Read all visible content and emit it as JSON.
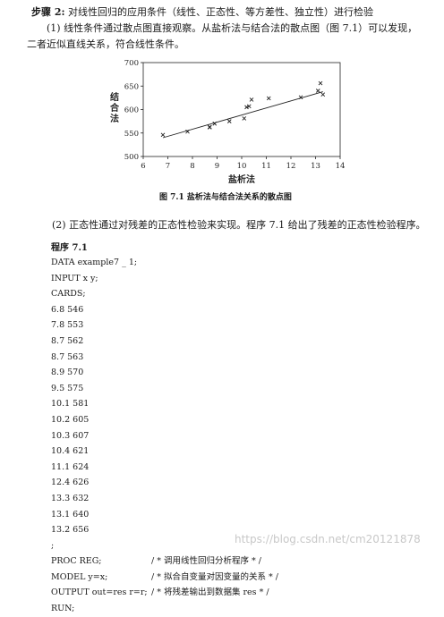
{
  "step": {
    "label": "步骤 2:",
    "text": "对线性回归的应用条件（线性、正态性、等方差性、独立性）进行检验"
  },
  "para1": {
    "line1": "(1) 线性条件通过散点图直接观察。从盐析法与结合法的散点图（图 7.1）可以发现，",
    "line2": "二者近似直线关系，符合线性条件。"
  },
  "chart_data": {
    "type": "scatter",
    "xlabel": "盐析法",
    "ylabel": "结合法",
    "xlim": [
      6,
      14
    ],
    "ylim": [
      500,
      700
    ],
    "xticks": [
      "6",
      "7",
      "8",
      "9",
      "10",
      "11",
      "12",
      "13",
      "14"
    ],
    "yticks": [
      "500",
      "550",
      "600",
      "650",
      "700"
    ],
    "x": [
      6.8,
      7.8,
      8.7,
      8.7,
      8.9,
      9.5,
      10.1,
      10.2,
      10.3,
      10.4,
      11.1,
      12.4,
      13.3,
      13.1,
      13.2
    ],
    "y": [
      546,
      553,
      562,
      563,
      570,
      575,
      581,
      605,
      607,
      621,
      624,
      626,
      632,
      640,
      656
    ],
    "fit_line": {
      "x": [
        6.8,
        13.3
      ],
      "y": [
        540,
        638
      ]
    },
    "marker": "x",
    "grid": false
  },
  "caption": "图 7.1  盐析法与结合法关系的散点图",
  "para2": "(2) 正态性通过对残差的正态性检验来实现。程序 7.1 给出了残差的正态性检验程序。",
  "program": {
    "title": "程序 7.1",
    "lines": [
      "DATA example7 _ 1;",
      "INPUT   x y;",
      "CARDS;",
      "6.8   546",
      "7.8   553",
      "8.7   562",
      "8.7   563",
      "8.9   570",
      "9.5   575",
      "10.1  581",
      "10.2  605",
      "10.3  607",
      "10.4  621",
      "11.1  624",
      "12.4  626",
      "13.3  632",
      "13.1  640",
      "13.2  656",
      ";"
    ],
    "proc": [
      {
        "code": "PROC REG;",
        "comment": "/ * 调用线性回归分析程序 * /"
      },
      {
        "code": "MODEL y=x;",
        "comment": "/ * 拟合自变量对因变量的关系 * /"
      },
      {
        "code": "OUTPUT out=res r=r;",
        "comment": "/ * 将残差输出到数据集 res * /"
      },
      {
        "code": "RUN;",
        "comment": ""
      }
    ]
  },
  "watermark": "https://blog.csdn.net/cm20121878"
}
